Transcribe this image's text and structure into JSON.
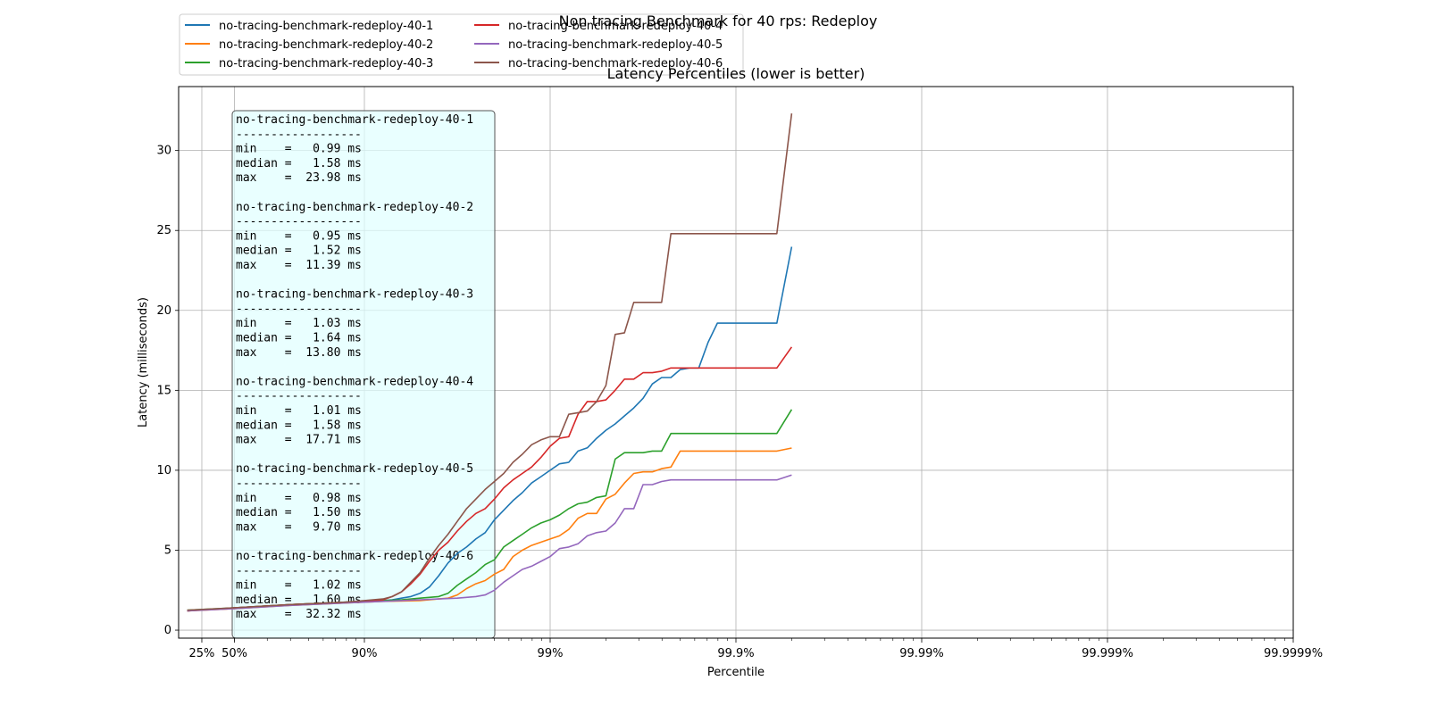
{
  "chart_data": {
    "type": "line",
    "title": "Non tracing Benchmark for 40 rps: Redeploy",
    "subtitle": "Latency Percentiles (lower is better)",
    "xlabel": "Percentile",
    "ylabel": "Latency (milliseconds)",
    "x_scale": "log(1/(1-p))",
    "xlim": [
      0,
      6
    ],
    "ylim": [
      -0.5,
      34.0
    ],
    "x_ticks": [
      {
        "pos": 0.1249,
        "label": "25%"
      },
      {
        "pos": 0.301,
        "label": "50%"
      },
      {
        "pos": 1,
        "label": "90%"
      },
      {
        "pos": 2,
        "label": "99%"
      },
      {
        "pos": 3,
        "label": "99.9%"
      },
      {
        "pos": 4,
        "label": "99.99%"
      },
      {
        "pos": 5,
        "label": "99.999%"
      },
      {
        "pos": 6,
        "label": "99.9999%"
      }
    ],
    "y_ticks": [
      0,
      5,
      10,
      15,
      20,
      25,
      30
    ],
    "grid": true,
    "legend_location": "upper-left, outside top",
    "series": [
      {
        "name": "no-tracing-benchmark-redeploy-40-1",
        "color": "#1f77b4",
        "x": [
          0.046,
          0.3,
          0.6,
          0.9,
          1.0,
          1.1,
          1.15,
          1.2,
          1.25,
          1.3,
          1.35,
          1.4,
          1.45,
          1.5,
          1.55,
          1.6,
          1.65,
          1.7,
          1.75,
          1.8,
          1.85,
          1.9,
          1.95,
          2.0,
          2.05,
          2.1,
          2.15,
          2.2,
          2.25,
          2.3,
          2.35,
          2.4,
          2.45,
          2.5,
          2.55,
          2.6,
          2.65,
          2.7,
          2.75,
          2.8,
          2.85,
          2.9,
          3.0,
          3.1,
          3.2,
          3.22,
          3.3
        ],
        "y": [
          1.2,
          1.4,
          1.6,
          1.75,
          1.8,
          1.85,
          1.9,
          2.0,
          2.1,
          2.3,
          2.7,
          3.4,
          4.2,
          4.8,
          5.2,
          5.7,
          6.1,
          6.9,
          7.5,
          8.1,
          8.6,
          9.2,
          9.6,
          10.0,
          10.4,
          10.5,
          11.2,
          11.4,
          12.0,
          12.5,
          12.9,
          13.4,
          13.9,
          14.5,
          15.4,
          15.8,
          15.8,
          16.3,
          16.4,
          16.4,
          18.0,
          19.2,
          19.2,
          19.2,
          19.2,
          19.2,
          23.98
        ]
      },
      {
        "name": "no-tracing-benchmark-redeploy-40-2",
        "color": "#ff7f0e",
        "x": [
          0.046,
          0.3,
          0.6,
          0.9,
          1.0,
          1.1,
          1.2,
          1.3,
          1.4,
          1.45,
          1.5,
          1.55,
          1.6,
          1.65,
          1.7,
          1.75,
          1.8,
          1.85,
          1.9,
          1.95,
          2.0,
          2.05,
          2.1,
          2.15,
          2.2,
          2.25,
          2.3,
          2.35,
          2.4,
          2.45,
          2.5,
          2.55,
          2.6,
          2.65,
          2.7,
          2.75,
          2.8,
          2.85,
          2.9,
          3.0,
          3.1,
          3.2,
          3.22,
          3.3
        ],
        "y": [
          1.2,
          1.35,
          1.55,
          1.7,
          1.75,
          1.8,
          1.82,
          1.85,
          1.95,
          2.0,
          2.2,
          2.6,
          2.9,
          3.1,
          3.5,
          3.8,
          4.6,
          5.0,
          5.3,
          5.5,
          5.7,
          5.9,
          6.3,
          7.0,
          7.3,
          7.3,
          8.2,
          8.5,
          9.2,
          9.8,
          9.9,
          9.9,
          10.1,
          10.2,
          11.2,
          11.2,
          11.2,
          11.2,
          11.2,
          11.2,
          11.2,
          11.2,
          11.2,
          11.39
        ]
      },
      {
        "name": "no-tracing-benchmark-redeploy-40-3",
        "color": "#2ca02c",
        "x": [
          0.046,
          0.3,
          0.6,
          0.9,
          1.0,
          1.1,
          1.2,
          1.3,
          1.4,
          1.45,
          1.5,
          1.55,
          1.6,
          1.65,
          1.7,
          1.75,
          1.8,
          1.85,
          1.9,
          1.95,
          2.0,
          2.05,
          2.1,
          2.15,
          2.2,
          2.25,
          2.3,
          2.35,
          2.4,
          2.45,
          2.5,
          2.55,
          2.6,
          2.65,
          2.7,
          2.75,
          2.8,
          2.85,
          2.9,
          3.0,
          3.1,
          3.2,
          3.22,
          3.3
        ],
        "y": [
          1.25,
          1.4,
          1.6,
          1.75,
          1.8,
          1.85,
          1.9,
          2.0,
          2.1,
          2.3,
          2.8,
          3.2,
          3.6,
          4.1,
          4.4,
          5.2,
          5.6,
          6.0,
          6.4,
          6.7,
          6.9,
          7.2,
          7.6,
          7.9,
          8.0,
          8.3,
          8.4,
          10.7,
          11.1,
          11.1,
          11.1,
          11.2,
          11.2,
          12.3,
          12.3,
          12.3,
          12.3,
          12.3,
          12.3,
          12.3,
          12.3,
          12.3,
          12.3,
          13.8
        ]
      },
      {
        "name": "no-tracing-benchmark-redeploy-40-4",
        "color": "#d62728",
        "x": [
          0.046,
          0.3,
          0.6,
          0.9,
          1.0,
          1.1,
          1.15,
          1.2,
          1.25,
          1.3,
          1.35,
          1.4,
          1.45,
          1.5,
          1.55,
          1.6,
          1.65,
          1.7,
          1.75,
          1.8,
          1.85,
          1.9,
          1.95,
          2.0,
          2.05,
          2.1,
          2.15,
          2.2,
          2.25,
          2.3,
          2.35,
          2.4,
          2.45,
          2.5,
          2.55,
          2.6,
          2.65,
          2.7,
          2.75,
          2.8,
          2.85,
          2.9,
          3.0,
          3.1,
          3.2,
          3.22,
          3.3
        ],
        "y": [
          1.2,
          1.4,
          1.6,
          1.75,
          1.8,
          1.9,
          2.1,
          2.4,
          2.9,
          3.5,
          4.3,
          5.0,
          5.5,
          6.2,
          6.8,
          7.3,
          7.6,
          8.2,
          8.9,
          9.4,
          9.8,
          10.2,
          10.8,
          11.5,
          12.0,
          12.1,
          13.5,
          14.3,
          14.3,
          14.4,
          15.0,
          15.7,
          15.7,
          16.1,
          16.1,
          16.2,
          16.4,
          16.4,
          16.4,
          16.4,
          16.4,
          16.4,
          16.4,
          16.4,
          16.4,
          16.4,
          17.71
        ]
      },
      {
        "name": "no-tracing-benchmark-redeploy-40-5",
        "color": "#9467bd",
        "x": [
          0.046,
          0.3,
          0.6,
          0.9,
          1.0,
          1.1,
          1.2,
          1.3,
          1.4,
          1.5,
          1.6,
          1.65,
          1.7,
          1.75,
          1.8,
          1.85,
          1.9,
          1.95,
          2.0,
          2.05,
          2.1,
          2.15,
          2.2,
          2.25,
          2.3,
          2.35,
          2.4,
          2.45,
          2.5,
          2.55,
          2.6,
          2.65,
          2.7,
          2.75,
          2.8,
          2.85,
          2.9,
          3.0,
          3.1,
          3.2,
          3.22,
          3.3
        ],
        "y": [
          1.2,
          1.35,
          1.55,
          1.7,
          1.75,
          1.8,
          1.85,
          1.9,
          1.95,
          2.0,
          2.1,
          2.2,
          2.5,
          3.0,
          3.4,
          3.8,
          4.0,
          4.3,
          4.6,
          5.1,
          5.2,
          5.4,
          5.9,
          6.1,
          6.2,
          6.7,
          7.6,
          7.6,
          9.1,
          9.1,
          9.3,
          9.4,
          9.4,
          9.4,
          9.4,
          9.4,
          9.4,
          9.4,
          9.4,
          9.4,
          9.4,
          9.7
        ]
      },
      {
        "name": "no-tracing-benchmark-redeploy-40-6",
        "color": "#8c564b",
        "x": [
          0.046,
          0.3,
          0.6,
          0.9,
          1.0,
          1.1,
          1.15,
          1.2,
          1.25,
          1.3,
          1.35,
          1.4,
          1.45,
          1.5,
          1.55,
          1.6,
          1.65,
          1.7,
          1.75,
          1.8,
          1.85,
          1.9,
          1.95,
          2.0,
          2.05,
          2.1,
          2.15,
          2.2,
          2.25,
          2.3,
          2.35,
          2.4,
          2.45,
          2.5,
          2.55,
          2.6,
          2.65,
          2.7,
          2.75,
          2.8,
          2.85,
          2.9,
          3.0,
          3.1,
          3.2,
          3.22,
          3.3
        ],
        "y": [
          1.25,
          1.4,
          1.6,
          1.75,
          1.85,
          1.95,
          2.1,
          2.4,
          3.0,
          3.6,
          4.5,
          5.3,
          6.0,
          6.8,
          7.6,
          8.2,
          8.8,
          9.3,
          9.8,
          10.5,
          11.0,
          11.6,
          11.9,
          12.1,
          12.1,
          13.5,
          13.6,
          13.7,
          14.3,
          15.3,
          18.5,
          18.6,
          20.5,
          20.5,
          20.5,
          20.5,
          24.8,
          24.8,
          24.8,
          24.8,
          24.8,
          24.8,
          24.8,
          24.8,
          24.8,
          24.8,
          32.32
        ]
      }
    ],
    "stats_box": [
      {
        "name": "no-tracing-benchmark-redeploy-40-1",
        "separator": "------------------",
        "min": "min    =   0.99 ms",
        "median": "median =   1.58 ms",
        "max": "max    =  23.98 ms"
      },
      {
        "name": "no-tracing-benchmark-redeploy-40-2",
        "separator": "------------------",
        "min": "min    =   0.95 ms",
        "median": "median =   1.52 ms",
        "max": "max    =  11.39 ms"
      },
      {
        "name": "no-tracing-benchmark-redeploy-40-3",
        "separator": "------------------",
        "min": "min    =   1.03 ms",
        "median": "median =   1.64 ms",
        "max": "max    =  13.80 ms"
      },
      {
        "name": "no-tracing-benchmark-redeploy-40-4",
        "separator": "------------------",
        "min": "min    =   1.01 ms",
        "median": "median =   1.58 ms",
        "max": "max    =  17.71 ms"
      },
      {
        "name": "no-tracing-benchmark-redeploy-40-5",
        "separator": "------------------",
        "min": "min    =   0.98 ms",
        "median": "median =   1.50 ms",
        "max": "max    =   9.70 ms"
      },
      {
        "name": "no-tracing-benchmark-redeploy-40-6",
        "separator": "------------------",
        "min": "min    =   1.02 ms",
        "median": "median =   1.60 ms",
        "max": "max    =  32.32 ms"
      }
    ]
  }
}
